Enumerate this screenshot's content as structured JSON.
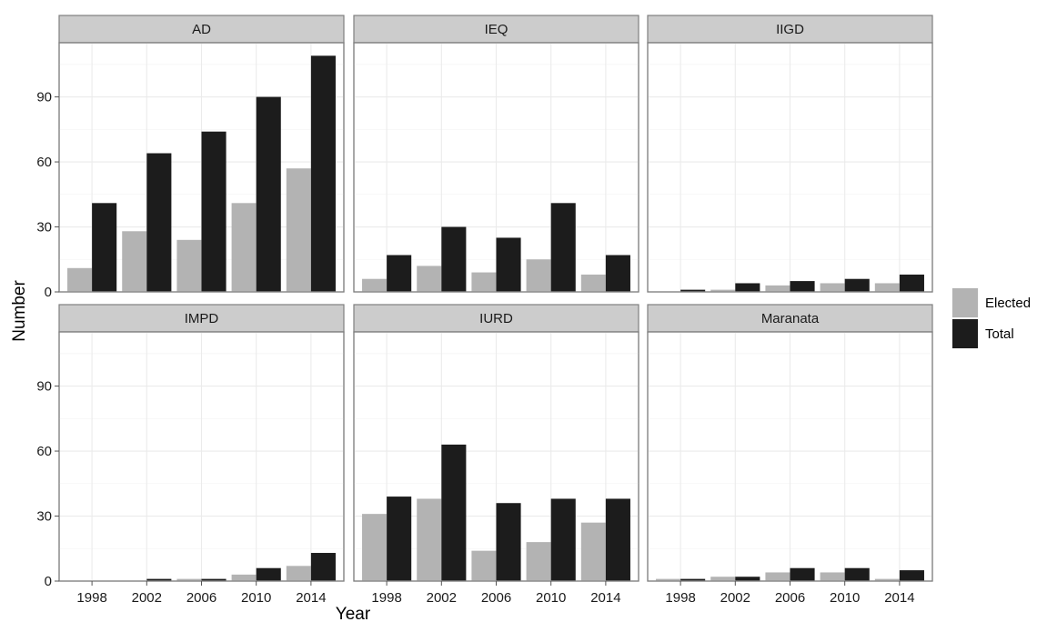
{
  "chart_data": {
    "type": "bar",
    "facets": [
      "AD",
      "IEQ",
      "IIGD",
      "IMPD",
      "IURD",
      "Maranata"
    ],
    "categories": [
      "1998",
      "2002",
      "2006",
      "2010",
      "2014"
    ],
    "xlabel": "Year",
    "ylabel": "Number",
    "ylim": [
      0,
      115
    ],
    "yticks": [
      0,
      30,
      60,
      90
    ],
    "grid": true,
    "legend": {
      "position": "right",
      "entries": [
        "Elected",
        "Total"
      ]
    },
    "colors": {
      "Elected": "#b3b3b3",
      "Total": "#1c1c1c"
    },
    "panels": [
      {
        "name": "AD",
        "series": [
          {
            "name": "Elected",
            "values": [
              11,
              28,
              24,
              41,
              57
            ]
          },
          {
            "name": "Total",
            "values": [
              41,
              64,
              74,
              90,
              109
            ]
          }
        ]
      },
      {
        "name": "IEQ",
        "series": [
          {
            "name": "Elected",
            "values": [
              6,
              12,
              9,
              15,
              8
            ]
          },
          {
            "name": "Total",
            "values": [
              17,
              30,
              25,
              41,
              17
            ]
          }
        ]
      },
      {
        "name": "IIGD",
        "series": [
          {
            "name": "Elected",
            "values": [
              0,
              1,
              3,
              4,
              4
            ]
          },
          {
            "name": "Total",
            "values": [
              1,
              4,
              5,
              6,
              8
            ]
          }
        ]
      },
      {
        "name": "IMPD",
        "series": [
          {
            "name": "Elected",
            "values": [
              0,
              0,
              1,
              3,
              7
            ]
          },
          {
            "name": "Total",
            "values": [
              0,
              1,
              1,
              6,
              13
            ]
          }
        ]
      },
      {
        "name": "IURD",
        "series": [
          {
            "name": "Elected",
            "values": [
              31,
              38,
              14,
              18,
              27
            ]
          },
          {
            "name": "Total",
            "values": [
              39,
              63,
              36,
              38,
              38
            ]
          }
        ]
      },
      {
        "name": "Maranata",
        "series": [
          {
            "name": "Elected",
            "values": [
              1,
              2,
              4,
              4,
              1
            ]
          },
          {
            "name": "Total",
            "values": [
              1,
              2,
              6,
              6,
              5
            ]
          }
        ]
      }
    ]
  }
}
